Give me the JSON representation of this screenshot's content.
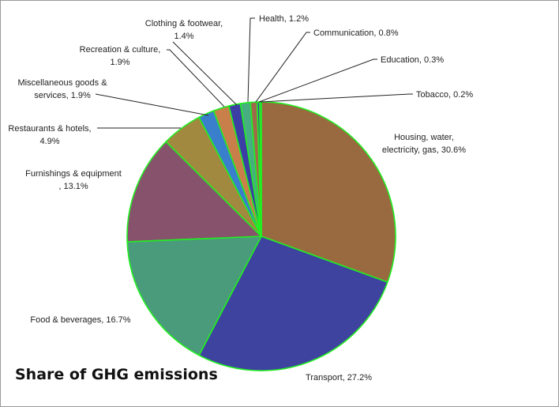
{
  "chart_data": {
    "type": "pie",
    "title": "Share of GHG emissions",
    "slices": [
      {
        "label_lines": [
          "Housing, water,",
          "electricity, gas, 30.6%"
        ],
        "category": "Housing, water, electricity, gas",
        "value": 30.6,
        "color": "#996a40"
      },
      {
        "label_lines": [
          "Transport, 27.2%"
        ],
        "category": "Transport",
        "value": 27.2,
        "color": "#3f43a0"
      },
      {
        "label_lines": [
          "Food & beverages, 16.7%"
        ],
        "category": "Food & beverages",
        "value": 16.7,
        "color": "#4a9a7c"
      },
      {
        "label_lines": [
          "Furnishings & equipment",
          ", 13.1%"
        ],
        "category": "Furnishings & equipment",
        "value": 13.1,
        "color": "#87536c"
      },
      {
        "label_lines": [
          "Restaurants & hotels,",
          "4.9%"
        ],
        "category": "Restaurants & hotels",
        "value": 4.9,
        "color": "#a1893f"
      },
      {
        "label_lines": [
          "Miscellaneous goods &",
          "services, 1.9%"
        ],
        "category": "Miscellaneous goods & services",
        "value": 1.9,
        "color": "#3a7fcc"
      },
      {
        "label_lines": [
          "Recreation & culture,",
          "1.9%"
        ],
        "category": "Recreation & culture",
        "value": 1.9,
        "color": "#c87f4a"
      },
      {
        "label_lines": [
          "Clothing & footwear,",
          "1.4%"
        ],
        "category": "Clothing & footwear",
        "value": 1.4,
        "color": "#3c3ea5"
      },
      {
        "label_lines": [
          "Health, 1.2%"
        ],
        "category": "Health",
        "value": 1.2,
        "color": "#46ae80"
      },
      {
        "label_lines": [
          "Communication, 0.8%"
        ],
        "category": "Communication",
        "value": 0.8,
        "color": "#a06a4a"
      },
      {
        "label_lines": [
          "Education, 0.3%"
        ],
        "category": "Education",
        "value": 0.3,
        "color": "#3f43a0"
      },
      {
        "label_lines": [
          "Tobacco, 0.2%"
        ],
        "category": "Tobacco",
        "value": 0.2,
        "color": "#4a9a7c"
      }
    ],
    "slice_border_color": "#22ee22",
    "legend": "none",
    "labels": "outside with leader lines"
  }
}
